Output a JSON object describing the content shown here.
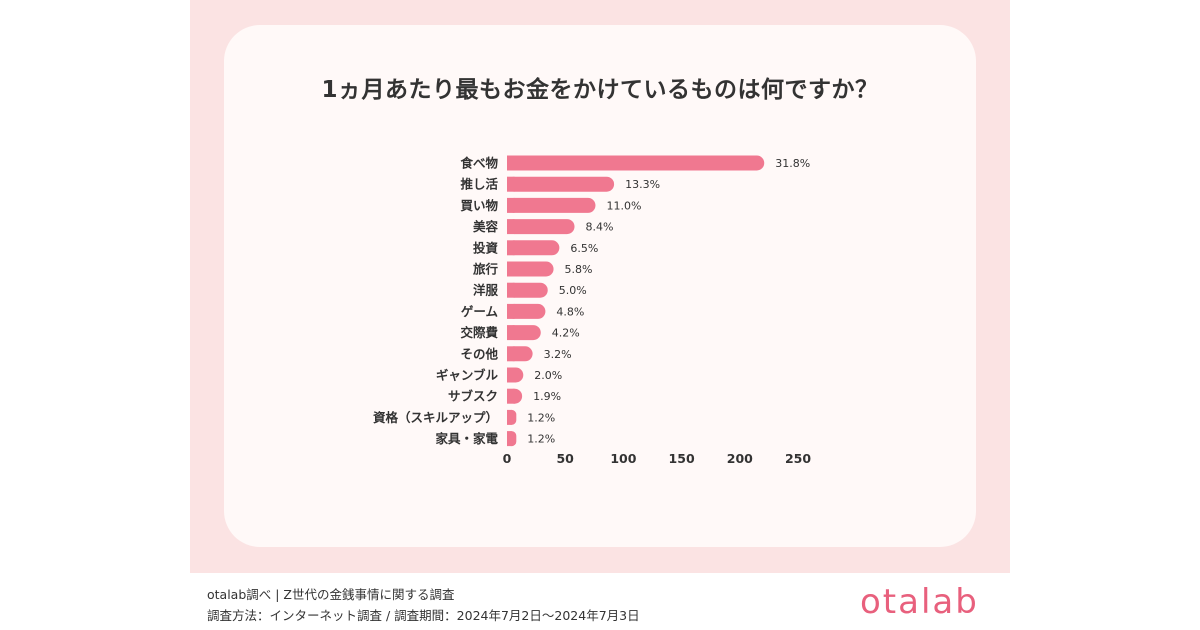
{
  "title": "1ヵ月あたり最もお金をかけているものは何ですか？",
  "colors": {
    "bar": "#f07890",
    "panel": "#fbe3e3",
    "card": "#fff9f8",
    "brand": "#e8607d"
  },
  "chart_data": {
    "type": "bar",
    "orientation": "horizontal",
    "title": "1ヵ月あたり最もお金をかけているものは何ですか？",
    "categories": [
      "食べ物",
      "推し活",
      "買い物",
      "美容",
      "投資",
      "旅行",
      "洋服",
      "ゲーム",
      "交際費",
      "その他",
      "ギャンブル",
      "サブスク",
      "資格（スキルアップ）",
      "家具・家電"
    ],
    "values": [
      221,
      92,
      76,
      58,
      45,
      40,
      35,
      33,
      29,
      22,
      14,
      13,
      8,
      8
    ],
    "data_labels": [
      "31.8%",
      "13.3%",
      "11.0%",
      "8.4%",
      "6.5%",
      "5.8%",
      "5.0%",
      "4.8%",
      "4.2%",
      "3.2%",
      "2.0%",
      "1.9%",
      "1.2%",
      "1.2%"
    ],
    "xlim": [
      0,
      250
    ],
    "xticks": [
      "0",
      "50",
      "100",
      "150",
      "200",
      "250"
    ],
    "grid": false,
    "legend": false
  },
  "footer": {
    "line1": "otalab調べ | Z世代の金銭事情に関する調査",
    "line2": "調査方法：インターネット調査 / 調査期間：2024年7月2日〜2024年7月3日"
  },
  "logo_text": "otalab"
}
